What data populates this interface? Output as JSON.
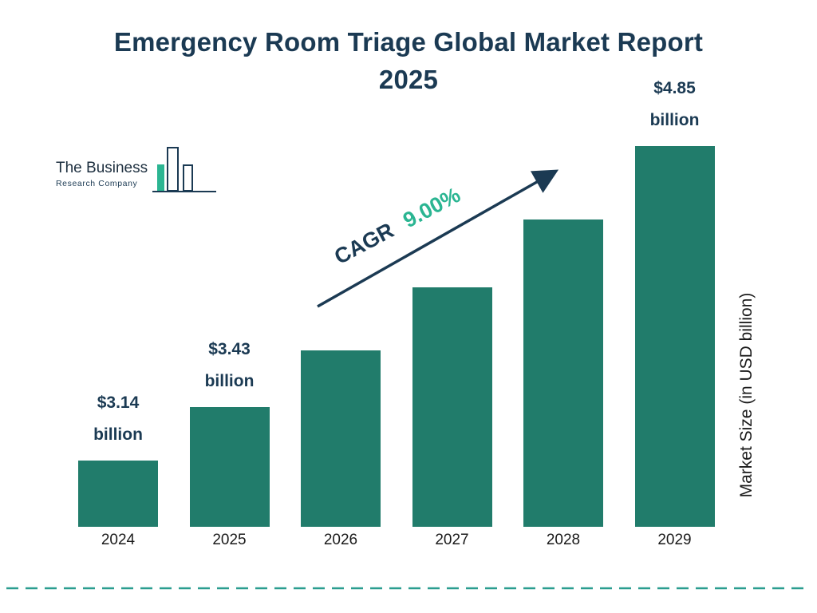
{
  "title": {
    "line1": "Emergency Room Triage Global Market Report",
    "line2": "2025"
  },
  "logo": {
    "name_line1": "The Business",
    "name_line2": "Research Company"
  },
  "annotation": {
    "cagr_label": "CAGR",
    "cagr_value": "9.00%"
  },
  "axes": {
    "y_label": "Market Size (in USD billion)"
  },
  "colors": {
    "navy": "#1b3a53",
    "bar_teal": "#217c6b",
    "accent_green": "#2bb592",
    "dashed_line": "#2a9d8f"
  },
  "chart_data": {
    "type": "bar",
    "title": "Emergency Room Triage Global Market Report 2025",
    "ylabel": "Market Size (in USD billion)",
    "unit": "USD billion",
    "cagr": "9.00%",
    "categories": [
      "2024",
      "2025",
      "2026",
      "2027",
      "2028",
      "2029"
    ],
    "values": [
      3.14,
      3.43,
      3.74,
      4.08,
      4.45,
      4.85
    ],
    "labels": [
      [
        "$3.14",
        "billion"
      ],
      [
        "$3.43",
        "billion"
      ],
      null,
      null,
      null,
      [
        "$4.85",
        "billion"
      ]
    ],
    "ylim": [
      2.78,
      4.85
    ],
    "bar_color": "#217c6b",
    "grid": false,
    "legend": false
  }
}
